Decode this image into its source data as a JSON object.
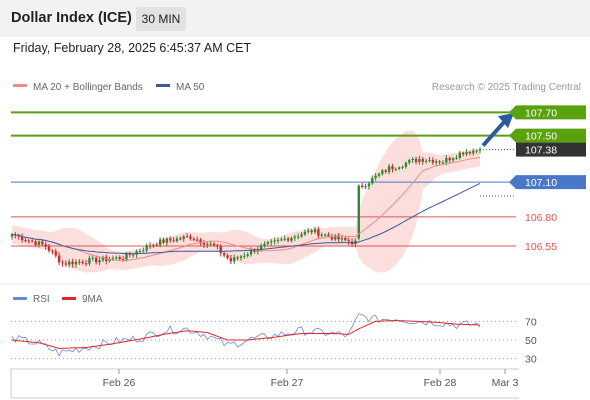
{
  "header": {
    "title": "Dollar Index (ICE)",
    "timeframe": "30 MIN",
    "datetime": "Friday, February 28, 2025 6:45:37 AM CET"
  },
  "legend": {
    "ma20_label": "MA 20 + Bollinger Bands",
    "ma50_label": "MA 50",
    "ma20_color": "#f08a8a",
    "ma50_color": "#3a5a9a",
    "credit": "Research © 2025 Trading Central"
  },
  "indicator_legend": {
    "rsi_label": "RSI",
    "ma_label": "9MA",
    "rsi_color": "#6a8ad8",
    "ma_color": "#e0262a"
  },
  "colors": {
    "resistance": "#5aa10e",
    "pivot": "#4a78c8",
    "support": "#e05555",
    "current": "#333333",
    "arrow": "#2c5aa0",
    "candle_up": "#2f8a2f",
    "candle_down": "#c43030",
    "band_fill": "#fbd4d2"
  },
  "chart_data": [
    {
      "type": "candlestick",
      "title": "Dollar Index (ICE)",
      "timeframe": "30 MIN",
      "x_ticks": [
        "Feb 26",
        "Feb 27",
        "Feb 28",
        "Mar 3"
      ],
      "ylim": [
        106.3,
        107.85
      ],
      "levels": [
        {
          "name": "resistance",
          "value": 107.7,
          "label": "107.70"
        },
        {
          "name": "resistance",
          "value": 107.5,
          "label": "107.50"
        },
        {
          "name": "current",
          "value": 107.38,
          "label": "107.38"
        },
        {
          "name": "pivot",
          "value": 107.1,
          "label": "107.10"
        },
        {
          "name": "support",
          "value": 106.8,
          "label": "106.80"
        },
        {
          "name": "support",
          "value": 106.55,
          "label": "106.55"
        }
      ],
      "key_points": [
        {
          "t": 0,
          "price": 106.65
        },
        {
          "t": 10,
          "price": 106.55
        },
        {
          "t": 15,
          "price": 106.4
        },
        {
          "t": 22,
          "price": 106.42
        },
        {
          "t": 33,
          "price": 106.45
        },
        {
          "t": 43,
          "price": 106.58
        },
        {
          "t": 53,
          "price": 106.63
        },
        {
          "t": 60,
          "price": 106.55
        },
        {
          "t": 65,
          "price": 106.42
        },
        {
          "t": 72,
          "price": 106.52
        },
        {
          "t": 82,
          "price": 106.62
        },
        {
          "t": 89,
          "price": 106.68
        },
        {
          "t": 98,
          "price": 106.6
        },
        {
          "t": 102,
          "price": 106.58
        },
        {
          "t": 103,
          "price": 107.05
        },
        {
          "t": 112,
          "price": 107.22
        },
        {
          "t": 121,
          "price": 107.3
        },
        {
          "t": 128,
          "price": 107.28
        },
        {
          "t": 134,
          "price": 107.36
        },
        {
          "t": 139,
          "price": 107.38
        }
      ],
      "candle_count": 140,
      "series": [
        {
          "name": "MA 20 + Bollinger Bands"
        },
        {
          "name": "MA 50"
        }
      ]
    },
    {
      "type": "line",
      "title": "RSI",
      "yticks": [
        70,
        50,
        30
      ],
      "ylim": [
        20,
        80
      ],
      "series": [
        {
          "name": "RSI",
          "key_points": [
            [
              0,
              52
            ],
            [
              8,
              46
            ],
            [
              14,
              36
            ],
            [
              22,
              42
            ],
            [
              30,
              48
            ],
            [
              38,
              52
            ],
            [
              45,
              60
            ],
            [
              52,
              62
            ],
            [
              58,
              55
            ],
            [
              64,
              44
            ],
            [
              70,
              50
            ],
            [
              78,
              55
            ],
            [
              86,
              60
            ],
            [
              95,
              57
            ],
            [
              100,
              55
            ],
            [
              103,
              76
            ],
            [
              108,
              72
            ],
            [
              114,
              73
            ],
            [
              120,
              70
            ],
            [
              126,
              69
            ],
            [
              132,
              66
            ],
            [
              139,
              67
            ]
          ]
        },
        {
          "name": "9MA",
          "key_points": [
            [
              0,
              50
            ],
            [
              8,
              47
            ],
            [
              14,
              41
            ],
            [
              22,
              42
            ],
            [
              30,
              46
            ],
            [
              38,
              51
            ],
            [
              45,
              56
            ],
            [
              52,
              60
            ],
            [
              58,
              58
            ],
            [
              64,
              50
            ],
            [
              70,
              50
            ],
            [
              78,
              53
            ],
            [
              86,
              57
            ],
            [
              95,
              57
            ],
            [
              100,
              56
            ],
            [
              103,
              62
            ],
            [
              108,
              70
            ],
            [
              114,
              71
            ],
            [
              120,
              70
            ],
            [
              126,
              69
            ],
            [
              132,
              67
            ],
            [
              139,
              66
            ]
          ]
        }
      ]
    }
  ]
}
